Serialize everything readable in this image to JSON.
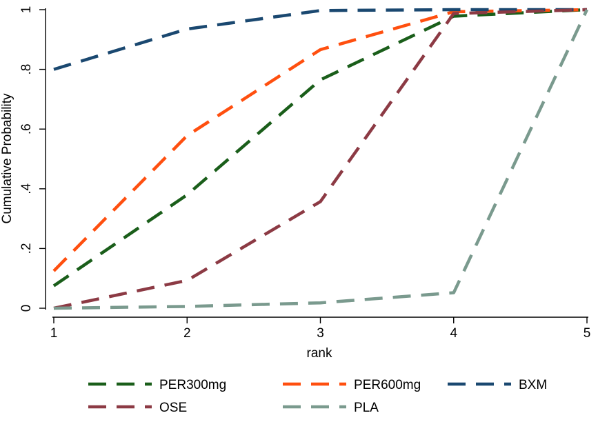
{
  "chart_data": {
    "type": "line",
    "title": "",
    "xlabel": "rank",
    "ylabel": "Cumulative Probability",
    "x": [
      1,
      2,
      3,
      4,
      5
    ],
    "xlim": [
      1,
      5
    ],
    "ylim": [
      0,
      1
    ],
    "x_ticks": [
      "1",
      "2",
      "3",
      "4",
      "5"
    ],
    "y_ticks": [
      {
        "value": 0,
        "label": "0"
      },
      {
        "value": 0.2,
        "label": ".2"
      },
      {
        "value": 0.4,
        "label": ".4"
      },
      {
        "value": 0.6,
        "label": ".6"
      },
      {
        "value": 0.8,
        "label": ".8"
      },
      {
        "value": 1,
        "label": "1"
      }
    ],
    "grid": false,
    "legend_position": "bottom",
    "series": [
      {
        "name": "PER300mg",
        "color": "#1a5e1a",
        "values": [
          0.075,
          0.38,
          0.765,
          0.978,
          1.0
        ]
      },
      {
        "name": "PER600mg",
        "color": "#ff4f0f",
        "values": [
          0.125,
          0.578,
          0.866,
          0.993,
          1.0
        ]
      },
      {
        "name": "BXM",
        "color": "#1a4870",
        "values": [
          0.8,
          0.935,
          0.997,
          1.0,
          1.0
        ]
      },
      {
        "name": "OSE",
        "color": "#8c3a44",
        "values": [
          0.0,
          0.093,
          0.357,
          0.987,
          1.0
        ]
      },
      {
        "name": "PLA",
        "color": "#7a9a8e",
        "values": [
          0.0,
          0.006,
          0.018,
          0.052,
          1.0
        ]
      }
    ]
  }
}
